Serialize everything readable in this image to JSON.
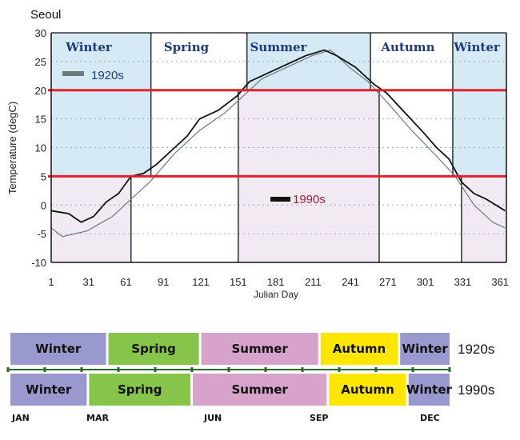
{
  "chart_data": [
    {
      "type": "line",
      "title": "Seoul",
      "xlabel": "Julian Day",
      "ylabel": "Temperature (degC)",
      "xlim": [
        1,
        366
      ],
      "ylim": [
        -10,
        30
      ],
      "xticks": [
        "1",
        "31",
        "61",
        "91",
        "121",
        "151",
        "181",
        "211",
        "241",
        "271",
        "301",
        "331",
        "361"
      ],
      "yticks": [
        "30",
        "25",
        "20",
        "15",
        "10",
        "5",
        "0",
        "-5",
        "-10"
      ],
      "thresholds": [
        20,
        5
      ],
      "season_labels": [
        "Winter",
        "Spring",
        "Summer",
        "Autumn",
        "Winter"
      ],
      "periods_1920s": {
        "winter_end": 81,
        "summer_start": 158,
        "summer_end": 257,
        "winter_start": 323
      },
      "periods_1990s": {
        "winter_end": 65,
        "summer_start": 151,
        "summer_end": 264,
        "winter_start": 330
      },
      "series": [
        {
          "name": "1920s",
          "color": "#6a7a80",
          "x": [
            1,
            10,
            30,
            50,
            65,
            80,
            100,
            120,
            140,
            155,
            170,
            190,
            210,
            225,
            240,
            255,
            270,
            290,
            310,
            325,
            340,
            355,
            365
          ],
          "y": [
            -4,
            -5.5,
            -4.5,
            -2,
            1,
            4,
            9,
            13,
            16,
            19,
            22,
            24,
            26,
            27,
            24,
            21.5,
            18,
            13,
            8.5,
            5,
            0,
            -3,
            -4
          ]
        },
        {
          "name": "1990s",
          "color": "#111111",
          "x": [
            1,
            15,
            25,
            35,
            45,
            55,
            65,
            75,
            85,
            100,
            110,
            120,
            135,
            150,
            160,
            175,
            190,
            205,
            220,
            230,
            245,
            260,
            270,
            285,
            300,
            310,
            320,
            330,
            340,
            350,
            365
          ],
          "y": [
            -1,
            -1.5,
            -3,
            -2,
            0.5,
            2,
            5,
            5.5,
            7,
            10,
            12,
            15,
            16.5,
            19,
            21.5,
            23,
            24.5,
            26,
            27,
            26,
            24,
            21,
            19.5,
            16,
            12.5,
            10,
            8,
            4,
            2,
            1,
            -1
          ]
        }
      ]
    },
    {
      "type": "timeline",
      "months": [
        "JAN",
        "MAR",
        "JUN",
        "SEP",
        "DEC"
      ],
      "rows": [
        {
          "name": "1920s",
          "segments": [
            {
              "label": "Winter",
              "start": 1,
              "end": 81
            },
            {
              "label": "Spring",
              "start": 81,
              "end": 158
            },
            {
              "label": "Summer",
              "start": 158,
              "end": 257
            },
            {
              "label": "Autumn",
              "start": 257,
              "end": 323
            },
            {
              "label": "Winter",
              "start": 323,
              "end": 366
            }
          ]
        },
        {
          "name": "1990s",
          "segments": [
            {
              "label": "Winter",
              "start": 1,
              "end": 65
            },
            {
              "label": "Spring",
              "start": 65,
              "end": 151
            },
            {
              "label": "Summer",
              "start": 151,
              "end": 264
            },
            {
              "label": "Autumn",
              "start": 264,
              "end": 330
            },
            {
              "label": "Winter",
              "start": 330,
              "end": 366
            }
          ]
        }
      ]
    }
  ],
  "colors": {
    "winter_fill": "#d6eaf6",
    "cold_fill": "#f1eaf2",
    "red": "#e0202a",
    "Winter": "#9a99cf",
    "Spring": "#86c44a",
    "Summer": "#d7a3cb",
    "Autumn": "#ffe600"
  }
}
